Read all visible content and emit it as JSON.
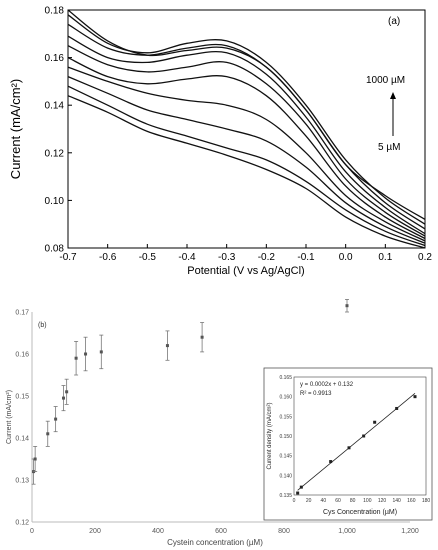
{
  "chart_data": [
    {
      "type": "line",
      "panel_label": "(a)",
      "xlabel": "Potential (V vs Ag/AgCl)",
      "ylabel": "Current (mA/cm²)",
      "xlim": [
        -0.7,
        0.2
      ],
      "ylim": [
        0.08,
        0.18
      ],
      "x_ticks": [
        "-0.7",
        "-0.6",
        "-0.5",
        "-0.4",
        "-0.3",
        "-0.2",
        "-0.1",
        "0.0",
        "0.1",
        "0.2"
      ],
      "y_ticks": [
        "0.08",
        "0.10",
        "0.12",
        "0.14",
        "0.16",
        "0.18"
      ],
      "annotation_top": "1000 µM",
      "annotation_bottom": "5 µM",
      "grid": false,
      "series": [
        {
          "x": [
            -0.7,
            -0.6,
            -0.5,
            -0.4,
            -0.3,
            -0.2,
            -0.1,
            0.0,
            0.1,
            0.2
          ],
          "values": [
            0.18,
            0.167,
            0.161,
            0.163,
            0.164,
            0.156,
            0.138,
            0.115,
            0.102,
            0.092
          ]
        },
        {
          "x": [
            -0.7,
            -0.6,
            -0.5,
            -0.4,
            -0.3,
            -0.2,
            -0.1,
            0.0,
            0.1,
            0.2
          ],
          "values": [
            0.178,
            0.166,
            0.162,
            0.166,
            0.167,
            0.158,
            0.14,
            0.117,
            0.101,
            0.09
          ]
        },
        {
          "x": [
            -0.7,
            -0.6,
            -0.5,
            -0.4,
            -0.3,
            -0.2,
            -0.1,
            0.0,
            0.1,
            0.2
          ],
          "values": [
            0.174,
            0.164,
            0.161,
            0.164,
            0.165,
            0.156,
            0.138,
            0.115,
            0.099,
            0.088
          ]
        },
        {
          "x": [
            -0.7,
            -0.6,
            -0.5,
            -0.4,
            -0.3,
            -0.2,
            -0.1,
            0.0,
            0.1,
            0.2
          ],
          "values": [
            0.169,
            0.16,
            0.158,
            0.161,
            0.162,
            0.153,
            0.135,
            0.112,
            0.097,
            0.086
          ]
        },
        {
          "x": [
            -0.7,
            -0.6,
            -0.5,
            -0.4,
            -0.3,
            -0.2,
            -0.1,
            0.0,
            0.1,
            0.2
          ],
          "values": [
            0.165,
            0.157,
            0.154,
            0.156,
            0.158,
            0.149,
            0.132,
            0.109,
            0.095,
            0.085
          ]
        },
        {
          "x": [
            -0.7,
            -0.6,
            -0.5,
            -0.4,
            -0.3,
            -0.2,
            -0.1,
            0.0,
            0.1,
            0.2
          ],
          "values": [
            0.16,
            0.152,
            0.149,
            0.151,
            0.152,
            0.144,
            0.127,
            0.106,
            0.093,
            0.084
          ]
        },
        {
          "x": [
            -0.7,
            -0.6,
            -0.5,
            -0.4,
            -0.3,
            -0.2,
            -0.1,
            0.0,
            0.1,
            0.2
          ],
          "values": [
            0.156,
            0.15,
            0.145,
            0.142,
            0.14,
            0.134,
            0.12,
            0.102,
            0.091,
            0.083
          ]
        },
        {
          "x": [
            -0.7,
            -0.6,
            -0.5,
            -0.4,
            -0.3,
            -0.2,
            -0.1,
            0.0,
            0.1,
            0.2
          ],
          "values": [
            0.152,
            0.145,
            0.138,
            0.134,
            0.13,
            0.125,
            0.114,
            0.099,
            0.089,
            0.082
          ]
        },
        {
          "x": [
            -0.7,
            -0.6,
            -0.5,
            -0.4,
            -0.3,
            -0.2,
            -0.1,
            0.0,
            0.1,
            0.2
          ],
          "values": [
            0.148,
            0.14,
            0.132,
            0.127,
            0.122,
            0.117,
            0.108,
            0.096,
            0.087,
            0.081
          ]
        },
        {
          "x": [
            -0.7,
            -0.6,
            -0.5,
            -0.4,
            -0.3,
            -0.2,
            -0.1,
            0.0,
            0.1,
            0.2
          ],
          "values": [
            0.144,
            0.137,
            0.129,
            0.124,
            0.119,
            0.113,
            0.105,
            0.093,
            0.085,
            0.08
          ]
        }
      ]
    },
    {
      "type": "scatter",
      "panel_label": "(b)",
      "xlabel": "Cystein concentration (µM)",
      "ylabel": "Current (mA/cm²)",
      "xlim": [
        0,
        1200
      ],
      "ylim": [
        0.12,
        0.17
      ],
      "x_ticks": [
        "0",
        "200",
        "400",
        "600",
        "800",
        "1,000",
        "1,200"
      ],
      "y_ticks": [
        "0.12",
        "0.13",
        "0.14",
        "0.15",
        "0.16",
        "0.17"
      ],
      "grid": false,
      "series": [
        {
          "x": [
            5,
            10,
            50,
            75,
            100,
            110,
            140,
            170,
            220,
            430,
            540,
            1000
          ],
          "values": [
            0.132,
            0.135,
            0.141,
            0.1445,
            0.1495,
            0.151,
            0.159,
            0.16,
            0.1605,
            0.162,
            0.164,
            0.1715
          ],
          "error": [
            0.003,
            0.003,
            0.003,
            0.003,
            0.003,
            0.003,
            0.004,
            0.004,
            0.004,
            0.0035,
            0.0035,
            0.0015
          ]
        }
      ],
      "inset": {
        "type": "scatter",
        "xlabel": "Cys Concentration (µM)",
        "ylabel": "Current density (mA/cm²)",
        "xlim": [
          0,
          180
        ],
        "ylim": [
          0.135,
          0.165
        ],
        "x_ticks": [
          "0",
          "20",
          "40",
          "60",
          "80",
          "100",
          "120",
          "140",
          "160",
          "180"
        ],
        "y_ticks": [
          "0.135",
          "0.140",
          "0.145",
          "0.150",
          "0.155",
          "0.160",
          "0.165"
        ],
        "equation": "y = 0.0002x + 0.132",
        "r_squared": "R² = 0.9913",
        "x": [
          5,
          10,
          50,
          75,
          95,
          110,
          140,
          165
        ],
        "values": [
          0.1355,
          0.137,
          0.1435,
          0.147,
          0.15,
          0.1535,
          0.157,
          0.16
        ]
      }
    }
  ]
}
